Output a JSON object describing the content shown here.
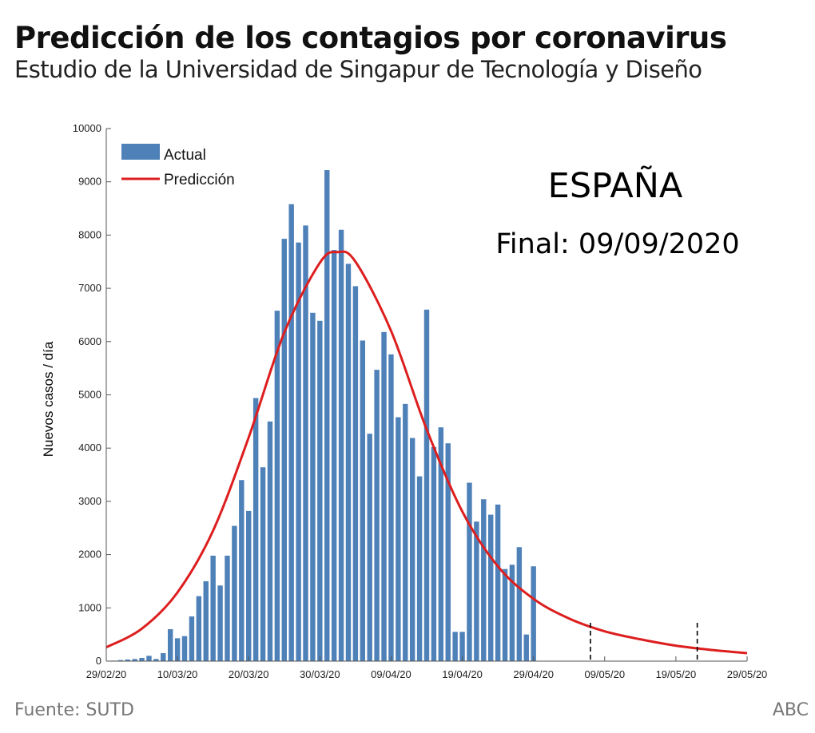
{
  "header": {
    "title": "Predicción de los contagios por coronavirus",
    "subtitle": "Estudio de la Universidad de Singapur de Tecnología y Diseño"
  },
  "footer": {
    "source": "Fuente: SUTD",
    "brand": "ABC"
  },
  "colors": {
    "bar": "#4f81b9",
    "prediction": "#dd1e1e",
    "axis": "#555555"
  },
  "chart_data": {
    "type": "bar",
    "ylabel": "Nuevos casos / día",
    "ylim": [
      0,
      10000
    ],
    "yticks": [
      0,
      1000,
      2000,
      3000,
      4000,
      5000,
      6000,
      7000,
      8000,
      9000,
      10000
    ],
    "xlim_days": [
      0,
      90
    ],
    "x_start_date": "29/02/20",
    "xticks": [
      {
        "day": 0,
        "label": "29/02/20"
      },
      {
        "day": 10,
        "label": "10/03/20"
      },
      {
        "day": 20,
        "label": "20/03/20"
      },
      {
        "day": 30,
        "label": "30/03/20"
      },
      {
        "day": 40,
        "label": "09/04/20"
      },
      {
        "day": 50,
        "label": "19/04/20"
      },
      {
        "day": 60,
        "label": "29/04/20"
      },
      {
        "day": 70,
        "label": "09/05/20"
      },
      {
        "day": 80,
        "label": "19/05/20"
      },
      {
        "day": 90,
        "label": "29/05/20"
      }
    ],
    "series": [
      {
        "name": "Actual",
        "type": "bar",
        "start_day": 1,
        "values": [
          10,
          20,
          30,
          40,
          60,
          100,
          40,
          150,
          600,
          430,
          470,
          840,
          1220,
          1500,
          1980,
          1420,
          1980,
          2540,
          3400,
          2820,
          4940,
          3640,
          4500,
          6580,
          7930,
          8580,
          7860,
          8180,
          6540,
          6390,
          9220,
          7720,
          8100,
          7460,
          7040,
          6020,
          4270,
          5470,
          6180,
          5760,
          4580,
          4830,
          4190,
          3470,
          6600,
          4020,
          4390,
          4090,
          550,
          550,
          3350,
          2620,
          3040,
          2750,
          2940,
          1730,
          1810,
          2140,
          500,
          1780
        ]
      },
      {
        "name": "Predicción",
        "type": "line",
        "peak_day": 32.5,
        "peak_value": 7680,
        "values_by_day": [
          {
            "day": 0,
            "value": 260
          },
          {
            "day": 5,
            "value": 610
          },
          {
            "day": 10,
            "value": 1290
          },
          {
            "day": 15,
            "value": 2450
          },
          {
            "day": 20,
            "value": 4200
          },
          {
            "day": 25,
            "value": 6170
          },
          {
            "day": 30,
            "value": 7480
          },
          {
            "day": 32.5,
            "value": 7680
          },
          {
            "day": 35,
            "value": 7500
          },
          {
            "day": 40,
            "value": 6200
          },
          {
            "day": 45,
            "value": 4350
          },
          {
            "day": 50,
            "value": 2810
          },
          {
            "day": 55,
            "value": 1780
          },
          {
            "day": 60,
            "value": 1170
          },
          {
            "day": 65,
            "value": 800
          },
          {
            "day": 70,
            "value": 560
          },
          {
            "day": 75,
            "value": 410
          },
          {
            "day": 80,
            "value": 290
          },
          {
            "day": 85,
            "value": 210
          },
          {
            "day": 90,
            "value": 150
          }
        ]
      }
    ],
    "markers_days": [
      68,
      83
    ],
    "legend": [
      "Actual",
      "Predicción"
    ],
    "annotations": {
      "country": "ESPAÑA",
      "final_date": "Final: 09/09/2020"
    }
  }
}
